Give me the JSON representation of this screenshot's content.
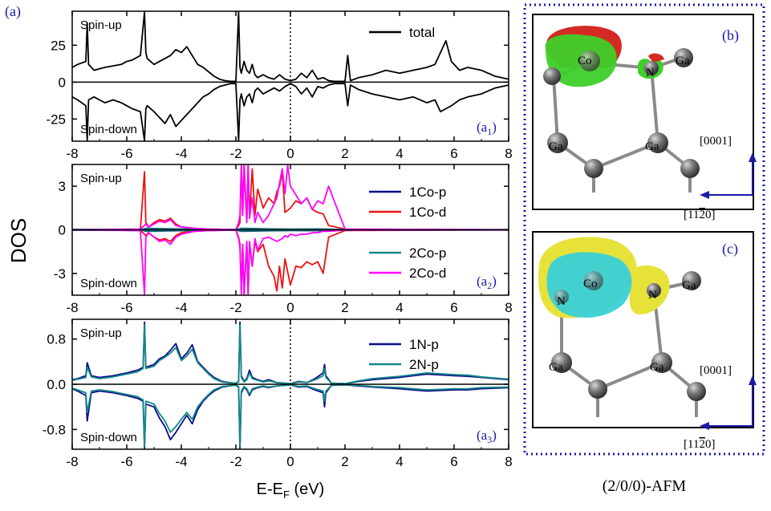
{
  "figure": {
    "ylabel": "DOS",
    "xlabel_main": "E-E",
    "xlabel_sub": "F",
    "xlabel_unit": " (eV)",
    "caption": "(2/0/0)-AFM"
  },
  "colors": {
    "total": "#000000",
    "Co1p": "#0a0a8c",
    "Co1d": "#ee1111",
    "Co2p": "#118a86",
    "Co2d": "#ff00ff",
    "N1p": "#0a0a8c",
    "N2p": "#118a86",
    "frame": "#1a1aa8",
    "panel_label": "#1a1aa8"
  },
  "chart_data": [
    {
      "id": "a1",
      "type": "line",
      "panel_label": "(a)",
      "corner_label": "a",
      "corner_sub": "1",
      "spin_up": "Spin-up",
      "spin_down": "Spin-down",
      "xlim": [
        -8,
        8
      ],
      "ylim": [
        -40,
        48
      ],
      "xticks": [
        -8,
        -6,
        -4,
        -2,
        0,
        2,
        4,
        6,
        8
      ],
      "xtick_labels": [
        "-8",
        "-6",
        "-4",
        "-2",
        "0",
        "2",
        "4",
        "6",
        "8"
      ],
      "yticks": [
        -25,
        0,
        25
      ],
      "ytick_labels": [
        "-25",
        "0",
        "25"
      ],
      "fermi_dotted_at": 0,
      "legend": [
        "total"
      ],
      "series": [
        {
          "name": "total",
          "color_key": "total",
          "x": [
            -8,
            -7.8,
            -7.5,
            -7.45,
            -7.4,
            -7.2,
            -7,
            -6.8,
            -6.5,
            -6.2,
            -6,
            -5.8,
            -5.5,
            -5.35,
            -5.3,
            -5.25,
            -5,
            -4.8,
            -4.6,
            -4.4,
            -4.2,
            -4,
            -3.8,
            -3.6,
            -3.4,
            -3.2,
            -3,
            -2.8,
            -2.6,
            -2.4,
            -2.2,
            -2,
            -1.9,
            -1.85,
            -1.8,
            -1.7,
            -1.6,
            -1.5,
            -1.4,
            -1.3,
            -1.2,
            -1,
            -0.8,
            -0.6,
            -0.4,
            -0.2,
            0,
            0.2,
            0.4,
            0.6,
            0.8,
            1,
            1.2,
            1.4,
            1.6,
            2,
            2.1,
            2.2,
            2.5,
            3,
            3.5,
            4,
            4.5,
            5,
            5.3,
            5.5,
            5.7,
            5.9,
            6.2,
            6.5,
            7,
            7.5,
            8
          ],
          "up": [
            10,
            12,
            14,
            40,
            12,
            8,
            9,
            10,
            11,
            12,
            14,
            15,
            18,
            48,
            20,
            16,
            12,
            14,
            16,
            18,
            22,
            20,
            24,
            18,
            12,
            10,
            7,
            4,
            2,
            1,
            0.5,
            0.5,
            48,
            10,
            6,
            14,
            8,
            6,
            12,
            5,
            3,
            5,
            3,
            2,
            5,
            2,
            1,
            2,
            6,
            3,
            8,
            2,
            3,
            1,
            0.5,
            0.5,
            18,
            1,
            3,
            5,
            8,
            6,
            8,
            10,
            12,
            20,
            28,
            14,
            8,
            10,
            8,
            4,
            2
          ],
          "down": [
            -10,
            -12,
            -16,
            -40,
            -12,
            -10,
            -12,
            -14,
            -12,
            -14,
            -16,
            -18,
            -20,
            -40,
            -18,
            -16,
            -20,
            -24,
            -28,
            -22,
            -30,
            -26,
            -22,
            -18,
            -14,
            -10,
            -8,
            -5,
            -3,
            -2,
            -1,
            -1,
            -40,
            -12,
            -8,
            -16,
            -10,
            -8,
            -14,
            -6,
            -4,
            -8,
            -6,
            -4,
            -6,
            -3,
            -1,
            -3,
            -8,
            -4,
            -10,
            -3,
            -4,
            -2,
            -1,
            -1,
            -16,
            -2,
            -5,
            -8,
            -10,
            -12,
            -10,
            -14,
            -12,
            -20,
            -18,
            -16,
            -12,
            -10,
            -8,
            -4,
            -2
          ]
        }
      ]
    },
    {
      "id": "a2",
      "type": "line",
      "corner_label": "a",
      "corner_sub": "2",
      "spin_up": "Spin-up",
      "spin_down": "Spin-down",
      "xlim": [
        -8,
        8
      ],
      "ylim": [
        -4.5,
        4.5
      ],
      "xticks": [
        -8,
        -6,
        -4,
        -2,
        0,
        2,
        4,
        6,
        8
      ],
      "xtick_labels": [
        "-8",
        "-6",
        "-4",
        "-2",
        "0",
        "2",
        "4",
        "6",
        "8"
      ],
      "yticks": [
        -3,
        0,
        3
      ],
      "ytick_labels": [
        "-3",
        "0",
        "3"
      ],
      "legend": [
        "1Co-p",
        "1Co-d",
        "2Co-p",
        "2Co-d"
      ],
      "series": [
        {
          "name": "1Co-p",
          "color_key": "Co1p",
          "x": [
            -8,
            -5.4,
            -5.3,
            -4.5,
            -4,
            -2,
            -1.8,
            -1,
            0,
            1,
            2,
            8
          ],
          "up": [
            0.02,
            0.05,
            0.1,
            0.08,
            0.06,
            0.03,
            0.1,
            0.08,
            0.05,
            0.06,
            0.02,
            0.01
          ],
          "down": [
            -0.02,
            -0.05,
            -0.1,
            -0.08,
            -0.06,
            -0.03,
            -0.1,
            -0.08,
            -0.05,
            -0.06,
            -0.02,
            -0.01
          ]
        },
        {
          "name": "1Co-d",
          "color_key": "Co1d",
          "x": [
            -8,
            -5.5,
            -5.35,
            -5.3,
            -5.2,
            -5,
            -4.8,
            -4.6,
            -4.4,
            -4.2,
            -4,
            -3.5,
            -3,
            -2,
            -1.9,
            -1.85,
            -1.8,
            -1.75,
            -1.7,
            -1.6,
            -1.55,
            -1.5,
            -1.4,
            -1.3,
            -1.2,
            -1,
            -0.8,
            -0.6,
            -0.5,
            -0.4,
            -0.3,
            -0.2,
            0,
            0.2,
            0.4,
            0.6,
            0.8,
            1,
            1.2,
            1.4,
            2,
            8
          ],
          "up": [
            0,
            0.05,
            4.0,
            0.5,
            0.2,
            0.5,
            0.7,
            0.6,
            0.8,
            0.4,
            0.2,
            0.1,
            0.05,
            0.02,
            0.3,
            0.5,
            4.5,
            1,
            4.5,
            0.5,
            4.5,
            0.8,
            4.2,
            1,
            2.8,
            1.5,
            2.2,
            1.8,
            2.6,
            3,
            4,
            1.2,
            1.5,
            2,
            1.8,
            2.2,
            1.4,
            1.2,
            1.1,
            0.3,
            0.05,
            0
          ],
          "down": [
            0,
            -0.05,
            -0.3,
            -0.4,
            -0.2,
            -0.5,
            -0.7,
            -0.6,
            -0.8,
            -0.4,
            -0.2,
            -0.1,
            -0.05,
            -0.02,
            -0.5,
            -1,
            -4.2,
            -1,
            -4.5,
            -0.8,
            -4.5,
            -1,
            -2.5,
            -0.8,
            -1.5,
            -1,
            -2.5,
            -3.2,
            -4.2,
            -2.5,
            -4,
            -2,
            -3.8,
            -2.5,
            -2.6,
            -2.2,
            -2.4,
            -2.2,
            -3,
            -0.5,
            -0.05,
            0
          ]
        },
        {
          "name": "2Co-p",
          "color_key": "Co2p",
          "x": [
            -8,
            -5.4,
            -5.3,
            -4.5,
            -4,
            -2,
            -1.8,
            -1,
            0,
            1,
            2,
            8
          ],
          "up": [
            0.02,
            0.04,
            0.08,
            0.06,
            0.05,
            0.03,
            0.08,
            0.06,
            0.04,
            0.05,
            0.02,
            0.01
          ],
          "down": [
            -0.02,
            -0.04,
            -0.08,
            -0.06,
            -0.05,
            -0.03,
            -0.08,
            -0.06,
            -0.04,
            -0.05,
            -0.02,
            -0.01
          ]
        },
        {
          "name": "2Co-d",
          "color_key": "Co2d",
          "x": [
            -8,
            -5.5,
            -5.35,
            -5.3,
            -5.2,
            -5,
            -4.8,
            -4.6,
            -4.4,
            -4.2,
            -4,
            -3.5,
            -3,
            -2,
            -1.9,
            -1.85,
            -1.8,
            -1.75,
            -1.7,
            -1.6,
            -1.55,
            -1.5,
            -1.4,
            -1.3,
            -1.2,
            -1,
            -0.8,
            -0.5,
            -0.3,
            -0.2,
            -0.1,
            0,
            0.2,
            0.4,
            0.6,
            0.8,
            1,
            1.2,
            1.4,
            2,
            8
          ],
          "up": [
            0,
            0.05,
            0.3,
            0.4,
            0.2,
            0.4,
            0.6,
            0.5,
            0.7,
            0.3,
            0.2,
            0.1,
            0.05,
            0.02,
            0.5,
            1,
            4.5,
            1,
            4.5,
            0.5,
            4.5,
            0.8,
            2.2,
            0.5,
            1.2,
            0.5,
            1,
            2.2,
            4.2,
            2.5,
            4.5,
            3,
            2.4,
            1.8,
            2.2,
            1.4,
            2,
            1.8,
            3,
            0.05,
            0
          ],
          "down": [
            0,
            -0.05,
            -4.5,
            -0.5,
            -0.2,
            -0.5,
            -0.8,
            -0.7,
            -1,
            -0.5,
            -0.3,
            -0.1,
            -0.05,
            -0.02,
            -0.6,
            -1.2,
            -4.5,
            -1,
            -4.5,
            -0.8,
            -4.5,
            -0.8,
            -2.5,
            -0.6,
            -1.4,
            -0.6,
            -0.5,
            -0.8,
            -0.6,
            -0.4,
            -0.5,
            -0.3,
            -0.4,
            -0.3,
            -0.3,
            -0.2,
            -0.2,
            -0.1,
            -0.1,
            -0.02,
            0
          ]
        }
      ]
    },
    {
      "id": "a3",
      "type": "line",
      "corner_label": "a",
      "corner_sub": "3",
      "spin_up": "Spin-up",
      "spin_down": "Spin-down",
      "xlim": [
        -8,
        8
      ],
      "ylim": [
        -1.15,
        1.15
      ],
      "xticks": [
        -8,
        -6,
        -4,
        -2,
        0,
        2,
        4,
        6,
        8
      ],
      "xtick_labels": [
        "-8",
        "-6",
        "-4",
        "-2",
        "0",
        "2",
        "4",
        "6",
        "8"
      ],
      "yticks": [
        -0.8,
        0,
        0.8
      ],
      "ytick_labels": [
        "-0.8",
        "0.0",
        "0.8"
      ],
      "fermi_dotted_at": 0,
      "legend": [
        "1N-p",
        "2N-p"
      ],
      "series": [
        {
          "name": "1N-p",
          "color_key": "N1p",
          "x": [
            -8,
            -7.8,
            -7.5,
            -7.45,
            -7.3,
            -7,
            -6.5,
            -6,
            -5.6,
            -5.4,
            -5.35,
            -5.3,
            -5,
            -4.8,
            -4.6,
            -4.4,
            -4.2,
            -4,
            -3.8,
            -3.6,
            -3.4,
            -3.2,
            -3,
            -2.8,
            -2.5,
            -2.1,
            -2,
            -1.9,
            -1.85,
            -1.8,
            -1.7,
            -1.6,
            -1.5,
            -1.4,
            -1.2,
            -1,
            -0.8,
            -0.5,
            -0.2,
            0,
            0.3,
            0.6,
            0.9,
            1.2,
            1.25,
            1.3,
            1.5,
            2,
            2.5,
            3,
            4,
            5,
            6,
            6.5,
            7,
            8
          ],
          "up": [
            0.08,
            0.1,
            0.15,
            0.38,
            0.15,
            0.12,
            0.15,
            0.2,
            0.25,
            0.3,
            1.1,
            0.3,
            0.35,
            0.45,
            0.5,
            0.6,
            0.72,
            0.45,
            0.55,
            0.7,
            0.4,
            0.3,
            0.2,
            0.12,
            0.05,
            0.02,
            0.02,
            0.05,
            1.1,
            0.15,
            0.05,
            0.1,
            0.25,
            0.12,
            0.08,
            0.05,
            0.08,
            0.03,
            0.02,
            0.01,
            0.05,
            0.03,
            0.1,
            0.2,
            0.35,
            0.15,
            0.02,
            0.01,
            0.05,
            0.08,
            0.12,
            0.18,
            0.15,
            0.14,
            0.12,
            0.08
          ],
          "down": [
            -0.08,
            -0.12,
            -0.2,
            -0.65,
            -0.15,
            -0.12,
            -0.15,
            -0.2,
            -0.25,
            -0.3,
            -1.15,
            -0.35,
            -0.4,
            -0.6,
            -0.75,
            -0.98,
            -0.85,
            -0.7,
            -0.55,
            -0.7,
            -0.45,
            -0.3,
            -0.2,
            -0.12,
            -0.05,
            -0.02,
            -0.02,
            -0.05,
            -1.15,
            -0.15,
            -0.05,
            -0.1,
            -0.2,
            -0.1,
            -0.06,
            -0.04,
            -0.06,
            -0.03,
            -0.02,
            -0.01,
            -0.05,
            -0.04,
            -0.1,
            -0.15,
            -0.4,
            -0.15,
            -0.02,
            -0.01,
            -0.03,
            -0.05,
            -0.08,
            -0.12,
            -0.1,
            -0.1,
            -0.08,
            -0.06
          ]
        },
        {
          "name": "2N-p",
          "color_key": "N2p",
          "x": [
            -8,
            -7.8,
            -7.5,
            -7.45,
            -7.3,
            -7,
            -6.5,
            -6,
            -5.6,
            -5.4,
            -5.35,
            -5.3,
            -5,
            -4.8,
            -4.6,
            -4.4,
            -4.2,
            -4,
            -3.8,
            -3.6,
            -3.4,
            -3.2,
            -3,
            -2.8,
            -2.5,
            -2.1,
            -2,
            -1.9,
            -1.85,
            -1.8,
            -1.7,
            -1.6,
            -1.5,
            -1.4,
            -1.2,
            -1,
            -0.8,
            -0.5,
            -0.2,
            0,
            0.3,
            0.6,
            0.9,
            1.2,
            1.25,
            1.3,
            1.5,
            2,
            2.5,
            3,
            4,
            5,
            6,
            6.5,
            7,
            8
          ],
          "up": [
            0.07,
            0.09,
            0.12,
            0.3,
            0.13,
            0.1,
            0.13,
            0.18,
            0.22,
            0.28,
            1.05,
            0.28,
            0.32,
            0.42,
            0.48,
            0.55,
            0.65,
            0.42,
            0.5,
            0.62,
            0.38,
            0.28,
            0.18,
            0.1,
            0.04,
            0.02,
            0.02,
            0.04,
            1.05,
            0.12,
            0.04,
            0.08,
            0.2,
            0.1,
            0.07,
            0.04,
            0.06,
            0.03,
            0.02,
            0.01,
            0.04,
            0.03,
            0.08,
            0.15,
            0.28,
            0.12,
            0.02,
            0.01,
            0.06,
            0.1,
            0.14,
            0.2,
            0.17,
            0.16,
            0.13,
            0.09
          ],
          "down": [
            -0.07,
            -0.1,
            -0.15,
            -0.5,
            -0.12,
            -0.1,
            -0.13,
            -0.18,
            -0.22,
            -0.28,
            -1.1,
            -0.3,
            -0.35,
            -0.52,
            -0.65,
            -0.85,
            -0.75,
            -0.62,
            -0.5,
            -0.62,
            -0.4,
            -0.28,
            -0.18,
            -0.1,
            -0.04,
            -0.02,
            -0.02,
            -0.04,
            -1.1,
            -0.12,
            -0.04,
            -0.08,
            -0.18,
            -0.08,
            -0.05,
            -0.03,
            -0.05,
            -0.03,
            -0.02,
            -0.01,
            -0.04,
            -0.03,
            -0.08,
            -0.12,
            -0.3,
            -0.12,
            -0.02,
            -0.01,
            -0.02,
            -0.04,
            -0.06,
            -0.1,
            -0.08,
            -0.08,
            -0.06,
            -0.05
          ]
        }
      ]
    }
  ],
  "structures": [
    {
      "id": "b",
      "label": "(b)",
      "atoms": [
        "Co",
        "N",
        "Ga",
        "Ga",
        "Ga"
      ],
      "direction_up": "[0001]",
      "direction_left": "[11",
      "direction_left_bar": "2",
      "direction_left_end": "0]"
    },
    {
      "id": "c",
      "label": "(c)",
      "atoms": [
        "Co",
        "N",
        "N",
        "Ga",
        "Ga",
        "Ga"
      ],
      "direction_up": "[0001]",
      "direction_left": "[11",
      "direction_left_bar": "2",
      "direction_left_end": "0]"
    }
  ]
}
